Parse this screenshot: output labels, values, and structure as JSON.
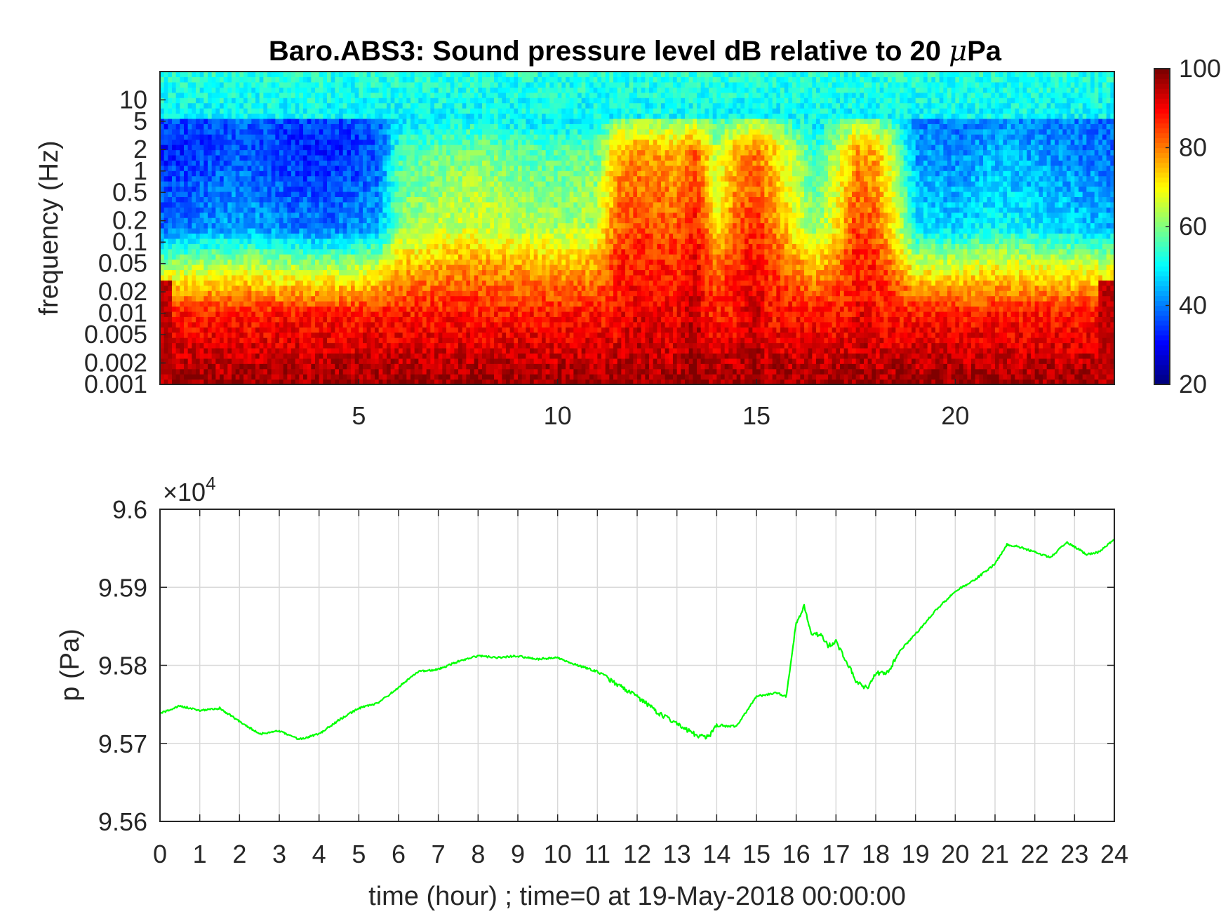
{
  "chart_data": [
    {
      "type": "heatmap",
      "title_main": "Baro.ABS3: Sound pressure level dB relative to 20 ",
      "title_mu": "μ",
      "title_unit": "Pa",
      "ylabel": "frequency (Hz)",
      "xlabel": "",
      "xlim": [
        0,
        24
      ],
      "x_ticks": [
        "5",
        "10",
        "15",
        "20"
      ],
      "x_tick_values": [
        5,
        10,
        15,
        20
      ],
      "y_scale": "log",
      "ylim": [
        0.001,
        25
      ],
      "y_ticks": [
        "10",
        "5",
        "2",
        "1",
        "0.5",
        "0.2",
        "0.1",
        "0.05",
        "0.02",
        "0.01",
        "0.005",
        "0.002",
        "0.001"
      ],
      "y_tick_values": [
        10,
        5,
        2,
        1,
        0.5,
        0.2,
        0.1,
        0.05,
        0.02,
        0.01,
        0.005,
        0.002,
        0.001
      ],
      "colormap": "jet",
      "color_range": [
        20,
        100
      ],
      "colorbar_ticks": [
        "100",
        "80",
        "60",
        "40",
        "20"
      ],
      "colorbar_tick_values": [
        100,
        80,
        60,
        40,
        20
      ],
      "activity_profile": {
        "hours": [
          0,
          1,
          2,
          3,
          4,
          5,
          5.5,
          6,
          7,
          8,
          9,
          10,
          11,
          11.5,
          12,
          13,
          13.5,
          14,
          14.5,
          15,
          15.5,
          16,
          16.5,
          17,
          17.5,
          18,
          18.5,
          19,
          20,
          21,
          22,
          23,
          24
        ],
        "level_dB_at_0.1Hz": [
          40,
          42,
          45,
          42,
          40,
          42,
          45,
          62,
          66,
          68,
          65,
          64,
          66,
          84,
          86,
          84,
          90,
          72,
          84,
          88,
          80,
          70,
          62,
          72,
          86,
          84,
          70,
          50,
          48,
          52,
          50,
          48,
          46
        ]
      }
    },
    {
      "type": "line",
      "exponent_base": "×10",
      "exponent_power": "4",
      "ylabel": "p (Pa)",
      "xlabel": "time (hour) ; time=0 at 19-May-2018 00:00:00",
      "xlim": [
        0,
        24
      ],
      "ylim": [
        95600,
        96000
      ],
      "x_ticks": [
        "0",
        "1",
        "2",
        "3",
        "4",
        "5",
        "6",
        "7",
        "8",
        "9",
        "10",
        "11",
        "12",
        "13",
        "14",
        "15",
        "16",
        "17",
        "18",
        "19",
        "20",
        "21",
        "22",
        "23",
        "24"
      ],
      "y_ticks": [
        "9.6",
        "9.59",
        "9.58",
        "9.57",
        "9.56"
      ],
      "y_tick_values": [
        96000,
        95900,
        95800,
        95700,
        95600
      ],
      "grid": true,
      "series": [
        {
          "color": "#00ff00",
          "x": [
            0,
            0.5,
            1,
            1.5,
            2,
            2.5,
            3,
            3.5,
            4,
            4.5,
            5,
            5.5,
            6,
            6.5,
            7,
            7.5,
            8,
            8.5,
            9,
            9.5,
            10,
            10.5,
            11,
            11.5,
            12,
            12.5,
            13,
            13.5,
            13.8,
            14,
            14.5,
            15,
            15.5,
            15.75,
            16,
            16.2,
            16.4,
            16.6,
            16.8,
            17,
            17.2,
            17.5,
            17.8,
            18,
            18.3,
            18.6,
            19,
            19.5,
            20,
            20.5,
            21,
            21.3,
            21.6,
            22,
            22.4,
            22.8,
            23,
            23.3,
            23.6,
            24
          ],
          "y": [
            95738,
            95748,
            95742,
            95745,
            95728,
            95712,
            95716,
            95705,
            95712,
            95730,
            95745,
            95752,
            95772,
            95792,
            95795,
            95805,
            95812,
            95810,
            95812,
            95808,
            95810,
            95800,
            95792,
            95775,
            95760,
            95740,
            95725,
            95710,
            95708,
            95722,
            95722,
            95760,
            95765,
            95760,
            95855,
            95875,
            95838,
            95840,
            95825,
            95830,
            95812,
            95780,
            95770,
            95790,
            95790,
            95818,
            95840,
            95870,
            95895,
            95910,
            95930,
            95955,
            95952,
            95945,
            95938,
            95958,
            95952,
            95942,
            95945,
            95962
          ]
        }
      ]
    }
  ]
}
